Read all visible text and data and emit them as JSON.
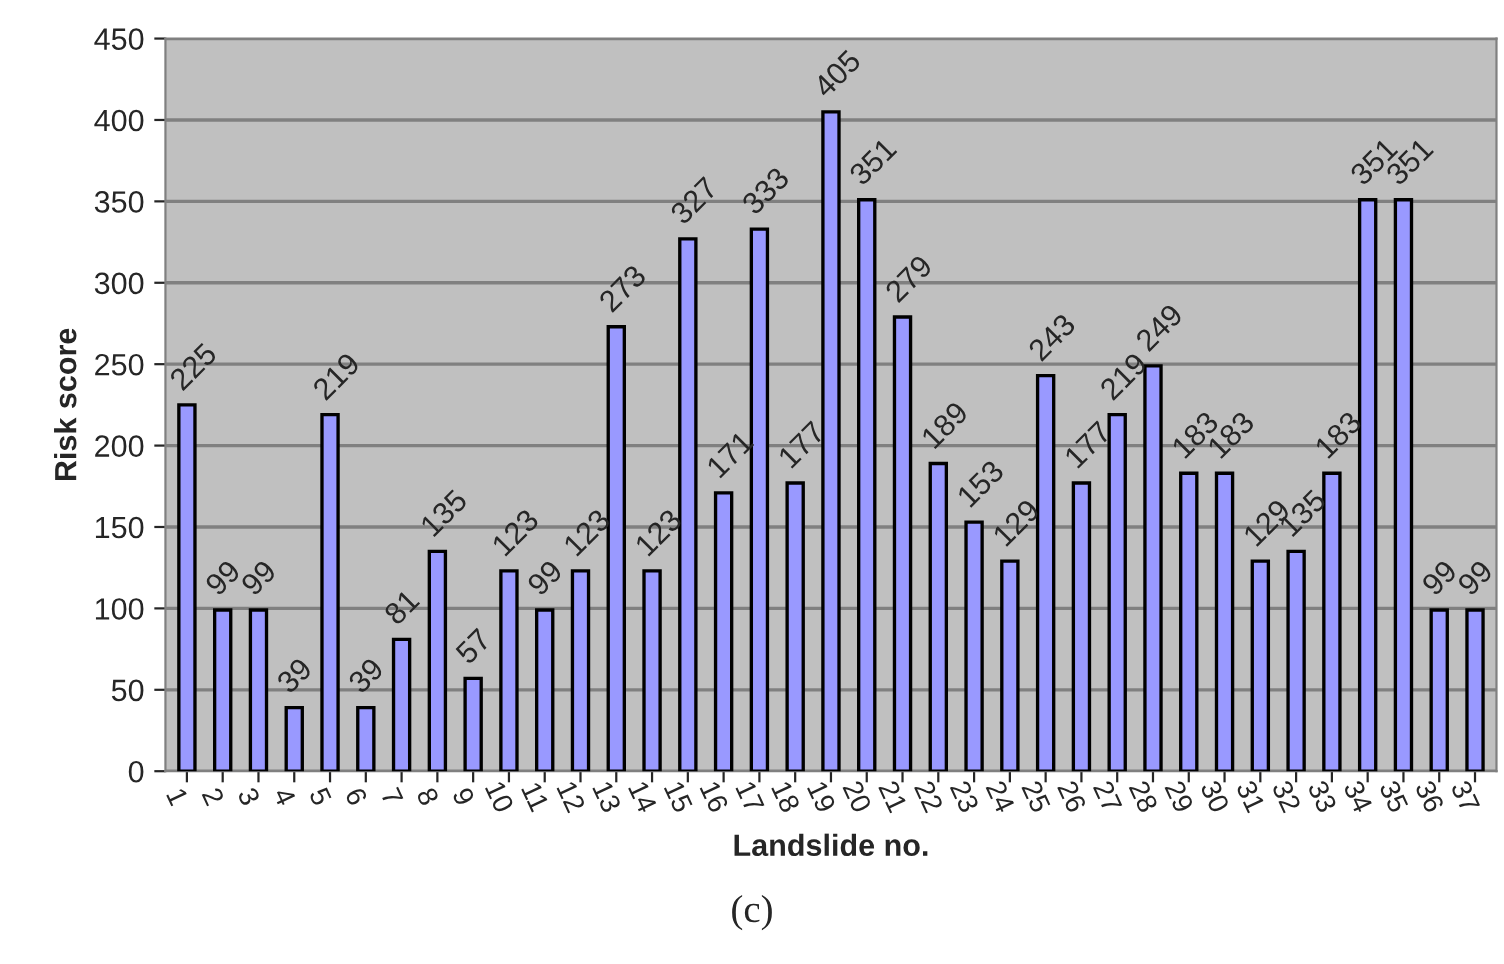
{
  "chart_data": {
    "type": "bar",
    "xlabel": "Landslide no.",
    "ylabel": "Risk score",
    "categories": [
      "1",
      "2",
      "3",
      "4",
      "5",
      "6",
      "7",
      "8",
      "9",
      "10",
      "11",
      "12",
      "13",
      "14",
      "15",
      "16",
      "17",
      "18",
      "19",
      "20",
      "21",
      "22",
      "23",
      "24",
      "25",
      "26",
      "27",
      "28",
      "29",
      "30",
      "31",
      "32",
      "33",
      "34",
      "35",
      "36",
      "37"
    ],
    "values": [
      225,
      99,
      99,
      39,
      219,
      39,
      81,
      135,
      57,
      123,
      99,
      123,
      273,
      123,
      327,
      171,
      333,
      177,
      405,
      351,
      279,
      189,
      153,
      129,
      243,
      177,
      219,
      249,
      183,
      183,
      129,
      135,
      183,
      351,
      351,
      99,
      99
    ],
    "color": "#9999ff",
    "ylim": [
      0,
      450
    ],
    "yticks": [
      0,
      50,
      100,
      150,
      200,
      250,
      300,
      350,
      400,
      450
    ],
    "grid": "y",
    "data_labels": true,
    "annotations": [
      "(c)"
    ]
  }
}
